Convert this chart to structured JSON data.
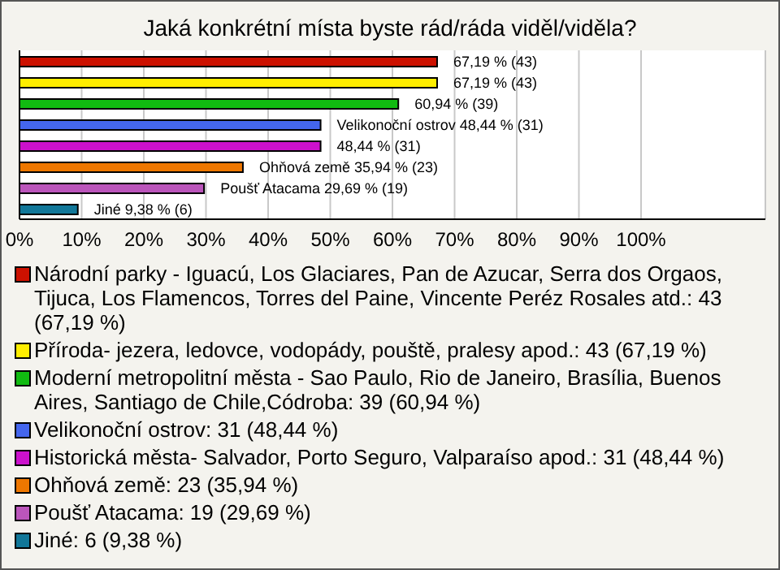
{
  "chart_data": {
    "type": "bar",
    "orientation": "horizontal",
    "stacked": true,
    "title": "Jaká konkrétní místa byste rád/ráda viděl/viděla?",
    "categories": [
      null,
      null,
      null,
      null,
      null,
      null,
      null,
      null
    ],
    "series": [
      {
        "name": "Národní parky - Iguacú, Los Glaciares, Pan de Azucar, Serra dos Orgaos, Tijuca, Los Flamencos, Torres del Paine, Vincente Peréz Rosales atd.: 43 (67,19 %)",
        "color": "#cc1100",
        "values": [
          67.19,
          null,
          null,
          null,
          null,
          null,
          null,
          null
        ],
        "value_labels": [
          "67,19 % (43)",
          null,
          null,
          null,
          null,
          null,
          null,
          null
        ]
      },
      {
        "name": "Příroda- jezera, ledovce, vodopády, pouště, pralesy apod.: 43 (67,19 %)",
        "color": "#ffee00",
        "values": [
          null,
          67.19,
          null,
          null,
          null,
          null,
          null,
          null
        ],
        "value_labels": [
          null,
          "67,19 % (43)",
          null,
          null,
          null,
          null,
          null,
          null
        ]
      },
      {
        "name": "Moderní metropolitní města - Sao Paulo, Rio de Janeiro, Brasília, Buenos Aires, Santiago de Chile,Códroba: 39 (60,94 %)",
        "color": "#11bb11",
        "values": [
          null,
          null,
          60.94,
          null,
          null,
          null,
          null,
          null
        ],
        "value_labels": [
          null,
          null,
          "60,94 % (39)",
          null,
          null,
          null,
          null,
          null
        ]
      },
      {
        "name": "Velikonoční ostrov: 31 (48,44 %)",
        "color": "#4466ee",
        "values": [
          null,
          null,
          null,
          48.44,
          null,
          null,
          null,
          null
        ],
        "value_labels": [
          null,
          null,
          null,
          "Velikonoční ostrov 48,44 % (31)",
          null,
          null,
          null,
          null
        ]
      },
      {
        "name": "Historická města- Salvador, Porto Seguro, Valparaíso apod.: 31 (48,44 %)",
        "color": "#cc11cc",
        "values": [
          null,
          null,
          null,
          null,
          48.44,
          null,
          null,
          null
        ],
        "value_labels": [
          null,
          null,
          null,
          null,
          "48,44 % (31)",
          null,
          null,
          null
        ]
      },
      {
        "name": "Ohňová země: 23 (35,94 %)",
        "color": "#ee7700",
        "values": [
          null,
          null,
          null,
          null,
          null,
          35.94,
          null,
          null
        ],
        "value_labels": [
          null,
          null,
          null,
          null,
          null,
          "Ohňová země 35,94 % (23)",
          null,
          null
        ]
      },
      {
        "name": "Poušť Atacama: 19 (29,69 %)",
        "color": "#bb55bb",
        "values": [
          null,
          null,
          null,
          null,
          null,
          null,
          29.69,
          null
        ],
        "value_labels": [
          null,
          null,
          null,
          null,
          null,
          null,
          "Poušť Atacama 29,69 % (19)",
          null
        ]
      },
      {
        "name": "Jiné: 6 (9,38 %)",
        "color": "#117799",
        "values": [
          null,
          null,
          null,
          null,
          null,
          null,
          null,
          9.38
        ],
        "value_labels": [
          null,
          null,
          null,
          null,
          null,
          null,
          null,
          "Jiné 9,38 % (6)"
        ]
      }
    ],
    "xlim": [
      0,
      120
    ],
    "xticks": [
      {
        "value": 0,
        "label": "0%"
      },
      {
        "value": 10,
        "label": "10%"
      },
      {
        "value": 20,
        "label": "20%"
      },
      {
        "value": 30,
        "label": "30%"
      },
      {
        "value": 40,
        "label": "40%"
      },
      {
        "value": 50,
        "label": "50%"
      },
      {
        "value": 60,
        "label": "60%"
      },
      {
        "value": 70,
        "label": "70%"
      },
      {
        "value": 80,
        "label": "80%"
      },
      {
        "value": 90,
        "label": "90%"
      },
      {
        "value": 100,
        "label": "100%"
      }
    ],
    "grid": "x",
    "legend": "bottom"
  }
}
